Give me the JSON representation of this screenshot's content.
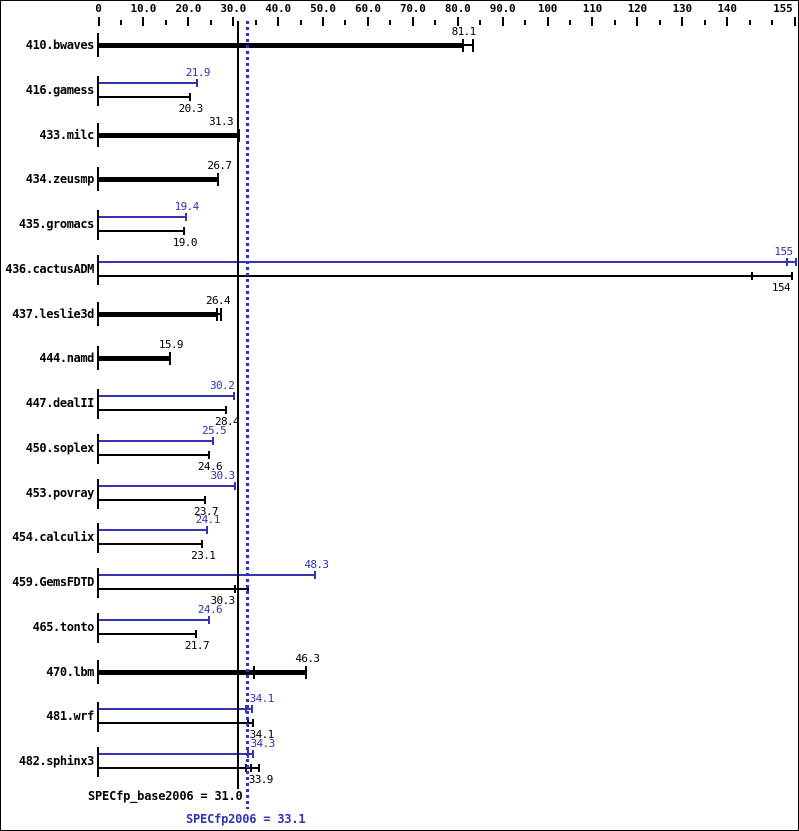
{
  "chart_data": {
    "type": "bar",
    "orientation": "horizontal",
    "title": "",
    "xlim": [
      0,
      155
    ],
    "grid": false,
    "legend": "none",
    "colors": {
      "peak": "#3333b3",
      "base": "#000000"
    },
    "x_axis": {
      "major_ticks": [
        {
          "v": 0,
          "label": "0"
        },
        {
          "v": 10,
          "label": "10.0"
        },
        {
          "v": 20,
          "label": "20.0"
        },
        {
          "v": 30,
          "label": "30.0"
        },
        {
          "v": 40,
          "label": "40.0"
        },
        {
          "v": 50,
          "label": "50.0"
        },
        {
          "v": 60,
          "label": "60.0"
        },
        {
          "v": 70,
          "label": "70.0"
        },
        {
          "v": 80,
          "label": "80.0"
        },
        {
          "v": 90,
          "label": "90.0"
        },
        {
          "v": 100,
          "label": "100"
        },
        {
          "v": 110,
          "label": "110"
        },
        {
          "v": 120,
          "label": "120"
        },
        {
          "v": 130,
          "label": "130"
        },
        {
          "v": 140,
          "label": "140"
        },
        {
          "v": 155,
          "label": "155",
          "align": "right"
        }
      ],
      "minor_tick_values": [
        5,
        15,
        25,
        35,
        45,
        55,
        65,
        75,
        85,
        95,
        105,
        115,
        125,
        135,
        145,
        150
      ]
    },
    "categories": [
      "410.bwaves",
      "416.gamess",
      "433.milc",
      "434.zeusmp",
      "435.gromacs",
      "436.cactusADM",
      "437.leslie3d",
      "444.namd",
      "447.dealII",
      "450.soplex",
      "453.povray",
      "454.calculix",
      "459.GemsFDTD",
      "465.tonto",
      "470.lbm",
      "481.wrf",
      "482.sphinx3"
    ],
    "series": [
      {
        "name": "SPECfp2006 (peak)",
        "color_key": "peak",
        "values": [
          null,
          21.9,
          null,
          null,
          19.4,
          155,
          null,
          null,
          30.2,
          25.5,
          30.3,
          24.1,
          48.3,
          24.6,
          null,
          34.1,
          34.3
        ]
      },
      {
        "name": "SPECfp_base2006 (base)",
        "color_key": "base",
        "values": [
          81.1,
          20.3,
          31.3,
          26.7,
          19.0,
          154,
          26.4,
          15.9,
          28.4,
          24.6,
          23.7,
          23.1,
          30.3,
          21.7,
          46.3,
          34.1,
          33.9
        ]
      }
    ],
    "rows": [
      {
        "name": "410.bwaves",
        "style": "single",
        "base": {
          "value": 81.1,
          "label": "81.1",
          "ticks": [
            81.1,
            83.4
          ]
        }
      },
      {
        "name": "416.gamess",
        "style": "pair",
        "peak": {
          "value": 21.9,
          "label": "21.9"
        },
        "base": {
          "value": 20.3,
          "label": "20.3"
        }
      },
      {
        "name": "433.milc",
        "style": "single",
        "base": {
          "value": 31.3,
          "label": "31.3",
          "align": "right",
          "dx": -6
        }
      },
      {
        "name": "434.zeusmp",
        "style": "single",
        "base": {
          "value": 26.7,
          "label": "26.7"
        }
      },
      {
        "name": "435.gromacs",
        "style": "pair",
        "peak": {
          "value": 19.4,
          "label": "19.4"
        },
        "base": {
          "value": 19.0,
          "label": "19.0"
        }
      },
      {
        "name": "436.cactusADM",
        "style": "pair",
        "peak": {
          "value": 155,
          "label": "155",
          "align": "right",
          "dx": -2,
          "ticks": [
            153.4,
            155.3
          ]
        },
        "base": {
          "value": 154,
          "label": "154",
          "align": "right",
          "ticks": [
            145.6,
            154.4
          ]
        }
      },
      {
        "name": "437.leslie3d",
        "style": "single",
        "base": {
          "value": 26.4,
          "label": "26.4",
          "ticks": [
            26.4,
            27.2
          ]
        }
      },
      {
        "name": "444.namd",
        "style": "single",
        "base": {
          "value": 15.9,
          "label": "15.9"
        }
      },
      {
        "name": "447.dealII",
        "style": "pair",
        "peak": {
          "value": 30.2,
          "label": "30.2",
          "align": "right"
        },
        "base": {
          "value": 28.4,
          "label": "28.4"
        }
      },
      {
        "name": "450.soplex",
        "style": "pair",
        "peak": {
          "value": 25.5,
          "label": "25.5"
        },
        "base": {
          "value": 24.6,
          "label": "24.6"
        }
      },
      {
        "name": "453.povray",
        "style": "pair",
        "peak": {
          "value": 30.3,
          "label": "30.3",
          "align": "right"
        },
        "base": {
          "value": 23.7,
          "label": "23.7"
        }
      },
      {
        "name": "454.calculix",
        "style": "pair",
        "peak": {
          "value": 24.1,
          "label": "24.1"
        },
        "base": {
          "value": 23.1,
          "label": "23.1"
        }
      },
      {
        "name": "459.GemsFDTD",
        "style": "pair",
        "peak": {
          "value": 48.3,
          "label": "48.3"
        },
        "base": {
          "value": 30.3,
          "label": "30.3",
          "align": "right",
          "ticks": [
            30.3,
            33.3
          ]
        }
      },
      {
        "name": "465.tonto",
        "style": "pair",
        "peak": {
          "value": 24.6,
          "label": "24.6"
        },
        "base": {
          "value": 21.7,
          "label": "21.7"
        }
      },
      {
        "name": "470.lbm",
        "style": "single",
        "base": {
          "value": 46.3,
          "label": "46.3",
          "ticks": [
            34.6,
            46.3
          ]
        }
      },
      {
        "name": "481.wrf",
        "style": "pair",
        "peak": {
          "value": 34.1,
          "label": "34.1",
          "align": "left",
          "ticks": [
            32.9,
            34.1
          ]
        },
        "base": {
          "value": 34.1,
          "label": "34.1",
          "align": "left",
          "ticks": [
            33.4,
            34.4
          ]
        }
      },
      {
        "name": "482.sphinx3",
        "style": "pair",
        "peak": {
          "value": 34.3,
          "label": "34.3",
          "align": "left",
          "ticks": [
            33.4,
            34.3
          ]
        },
        "base": {
          "value": 33.9,
          "label": "33.9",
          "align": "left",
          "ticks": [
            32.9,
            33.9,
            35.8
          ]
        }
      }
    ],
    "reference_lines": [
      {
        "name": "base_mean",
        "value": 31.0,
        "style": "solid",
        "color_key": "base"
      },
      {
        "name": "peak_mean",
        "value": 33.1,
        "style": "dotted",
        "color_key": "peak"
      }
    ],
    "footer": {
      "base": {
        "text": "SPECfp_base2006 = 31.0"
      },
      "peak": {
        "text": "SPECfp2006 = 33.1"
      }
    }
  }
}
